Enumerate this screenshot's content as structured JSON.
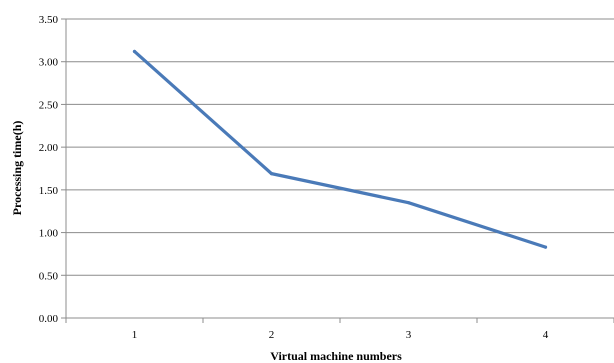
{
  "chart_data": {
    "type": "line",
    "title": "",
    "xlabel": "Virtual machine numbers",
    "ylabel": "Processing time(h)",
    "categories": [
      "1",
      "2",
      "3",
      "4"
    ],
    "series": [
      {
        "values": [
          3.12,
          1.69,
          1.35,
          0.83
        ]
      }
    ],
    "ylim": [
      0,
      3.5
    ],
    "yticks": [
      "0.00",
      "0.50",
      "1.00",
      "1.50",
      "2.00",
      "2.50",
      "3.00",
      "3.50"
    ],
    "grid": true,
    "line_color": "#4a7ab8",
    "grid_color": "#8c8c8c"
  }
}
